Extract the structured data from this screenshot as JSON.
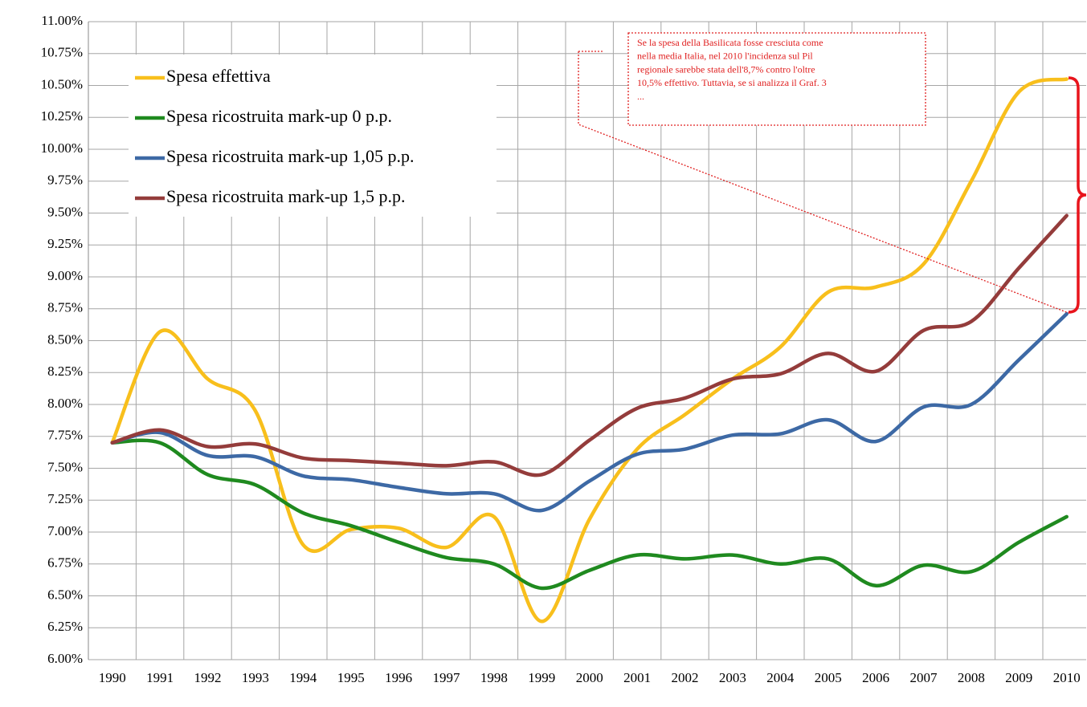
{
  "chart_data": {
    "type": "line",
    "categories": [
      "1990",
      "1991",
      "1992",
      "1993",
      "1994",
      "1995",
      "1996",
      "1997",
      "1998",
      "1999",
      "2000",
      "2001",
      "2002",
      "2003",
      "2004",
      "2005",
      "2006",
      "2007",
      "2008",
      "2009",
      "2010"
    ],
    "series": [
      {
        "name": "Spesa effettiva",
        "color": "#f8bf1c",
        "values": [
          7.7,
          8.57,
          8.2,
          7.95,
          6.9,
          7.02,
          7.03,
          6.88,
          7.12,
          6.3,
          7.1,
          7.65,
          7.92,
          8.2,
          8.45,
          8.88,
          8.92,
          9.1,
          9.75,
          10.45,
          10.55
        ]
      },
      {
        "name": "Spesa ricostruita mark-up 0 p.p.",
        "color": "#1f8a1f",
        "values": [
          7.7,
          7.7,
          7.45,
          7.37,
          7.15,
          7.05,
          6.92,
          6.8,
          6.75,
          6.56,
          6.7,
          6.82,
          6.79,
          6.82,
          6.75,
          6.79,
          6.58,
          6.74,
          6.69,
          6.92,
          7.12
        ]
      },
      {
        "name": "Spesa ricostruita mark-up 1,05 p.p.",
        "color": "#3d69a5",
        "values": [
          7.7,
          7.78,
          7.6,
          7.59,
          7.44,
          7.41,
          7.35,
          7.3,
          7.3,
          7.17,
          7.4,
          7.61,
          7.65,
          7.76,
          7.77,
          7.88,
          7.71,
          7.98,
          8.0,
          8.35,
          8.71
        ]
      },
      {
        "name": "Spesa ricostruita mark-up 1,5 p.p.",
        "color": "#943c3b",
        "values": [
          7.7,
          7.8,
          7.67,
          7.69,
          7.58,
          7.56,
          7.54,
          7.52,
          7.55,
          7.45,
          7.72,
          7.97,
          8.05,
          8.2,
          8.24,
          8.4,
          8.26,
          8.58,
          8.65,
          9.07,
          9.48
        ]
      }
    ],
    "ylim": [
      6,
      11
    ],
    "yticks": [
      {
        "value": 6,
        "label": "6.00%"
      },
      {
        "value": 6.25,
        "label": "6.25%"
      },
      {
        "value": 6.5,
        "label": "6.50%"
      },
      {
        "value": 6.75,
        "label": "6.75%"
      },
      {
        "value": 7,
        "label": "7.00%"
      },
      {
        "value": 7.25,
        "label": "7.25%"
      },
      {
        "value": 7.5,
        "label": "7.50%"
      },
      {
        "value": 7.75,
        "label": "7.75%"
      },
      {
        "value": 8,
        "label": "8.00%"
      },
      {
        "value": 8.25,
        "label": "8.25%"
      },
      {
        "value": 8.5,
        "label": "8.50%"
      },
      {
        "value": 8.75,
        "label": "8.75%"
      },
      {
        "value": 9,
        "label": "9.00%"
      },
      {
        "value": 9.25,
        "label": "9.25%"
      },
      {
        "value": 9.5,
        "label": "9.50%"
      },
      {
        "value": 9.75,
        "label": "9.75%"
      },
      {
        "value": 10,
        "label": "10.00%"
      },
      {
        "value": 10.25,
        "label": "10.25%"
      },
      {
        "value": 10.5,
        "label": "10.50%"
      },
      {
        "value": 10.75,
        "label": "10.75%"
      },
      {
        "value": 11,
        "label": "11.00%"
      }
    ],
    "grid": true,
    "annotation": [
      "Se la spesa della Basilicata fosse cresciuta come",
      "nella media Italia, nel 2010 l'incidenza sul Pil",
      "regionale sarebbe stata dell'8,7% contro l'oltre",
      "10,5% effettivo. Tuttavia,  se si analizza il Graf. 3",
      "..."
    ]
  }
}
